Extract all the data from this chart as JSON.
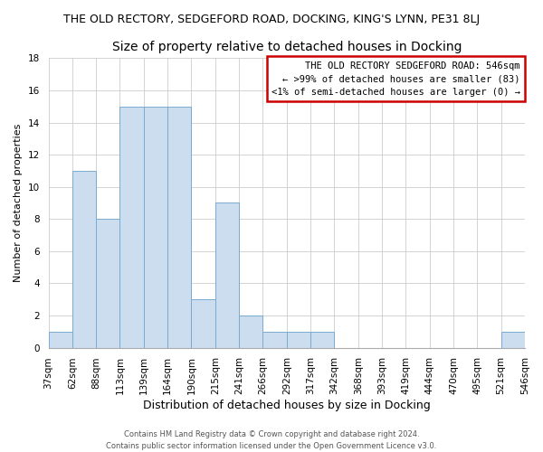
{
  "title": "THE OLD RECTORY, SEDGEFORD ROAD, DOCKING, KING'S LYNN, PE31 8LJ",
  "subtitle": "Size of property relative to detached houses in Docking",
  "xlabel": "Distribution of detached houses by size in Docking",
  "ylabel": "Number of detached properties",
  "footer_lines": [
    "Contains HM Land Registry data © Crown copyright and database right 2024.",
    "Contains public sector information licensed under the Open Government Licence v3.0."
  ],
  "bin_labels": [
    "37sqm",
    "62sqm",
    "88sqm",
    "113sqm",
    "139sqm",
    "164sqm",
    "190sqm",
    "215sqm",
    "241sqm",
    "266sqm",
    "292sqm",
    "317sqm",
    "342sqm",
    "368sqm",
    "393sqm",
    "419sqm",
    "444sqm",
    "470sqm",
    "495sqm",
    "521sqm",
    "546sqm"
  ],
  "values": [
    1,
    11,
    8,
    15,
    15,
    15,
    3,
    9,
    2,
    1,
    1,
    1,
    0,
    0,
    0,
    0,
    0,
    0,
    0,
    1
  ],
  "bar_color": "#ccddf0",
  "bar_edge_color": "#7aaad0",
  "ylim": [
    0,
    18
  ],
  "yticks": [
    0,
    2,
    4,
    6,
    8,
    10,
    12,
    14,
    16,
    18
  ],
  "legend_title": "THE OLD RECTORY SEDGEFORD ROAD: 546sqm",
  "legend_line1": "← >99% of detached houses are smaller (83)",
  "legend_line2": "<1% of semi-detached houses are larger (0) →",
  "legend_box_facecolor": "#ffffff",
  "legend_box_edgecolor": "#cc0000",
  "bg_color": "#ffffff",
  "grid_color": "#cccccc",
  "title_fontsize": 9,
  "subtitle_fontsize": 10,
  "ylabel_fontsize": 8,
  "xlabel_fontsize": 9,
  "tick_fontsize": 7.5,
  "legend_fontsize": 7.5,
  "footer_fontsize": 6
}
